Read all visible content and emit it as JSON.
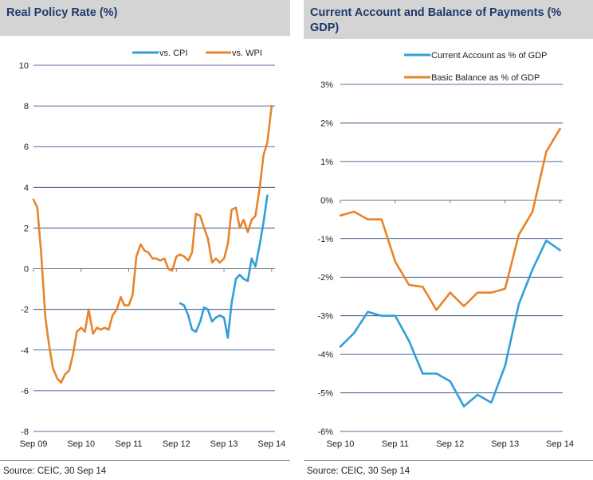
{
  "chart_data": [
    {
      "type": "line",
      "title": "Real Policy Rate (%)",
      "xlabel": "",
      "ylabel": "",
      "ylim": [
        -8,
        10
      ],
      "yticks": [
        -8,
        -6,
        -4,
        -2,
        0,
        2,
        4,
        6,
        8,
        10
      ],
      "ytick_labels": [
        "-8",
        "-6",
        "-4",
        "-2",
        "0",
        "2",
        "4",
        "6",
        "8",
        "10"
      ],
      "xlim": [
        2009.67,
        2014.74
      ],
      "xtick_positions": [
        2009.67,
        2010.67,
        2011.67,
        2012.67,
        2013.67,
        2014.67
      ],
      "x_ticks": [
        "Sep 09",
        "Sep 10",
        "Sep 11",
        "Sep 12",
        "Sep 13",
        "Sep 14"
      ],
      "legend_position": "top-right",
      "grid": true,
      "source": "Source: CEIC, 30 Sep 14",
      "series": [
        {
          "name": "vs. CPI",
          "color": "#2f9fd8",
          "x": [
            2012.75,
            2012.83,
            2012.92,
            2013.0,
            2013.08,
            2013.17,
            2013.25,
            2013.33,
            2013.42,
            2013.5,
            2013.58,
            2013.67,
            2013.75,
            2013.83,
            2013.92,
            2014.0,
            2014.08,
            2014.17,
            2014.25,
            2014.33,
            2014.42,
            2014.5,
            2014.58
          ],
          "y": [
            -1.7,
            -1.8,
            -2.3,
            -3.0,
            -3.1,
            -2.6,
            -1.9,
            -2.0,
            -2.6,
            -2.4,
            -2.3,
            -2.4,
            -3.4,
            -1.7,
            -0.5,
            -0.3,
            -0.5,
            -0.6,
            0.5,
            0.1,
            1.2,
            2.3,
            3.6
          ]
        },
        {
          "name": "vs. WPI",
          "color": "#e8842a",
          "x": [
            2009.67,
            2009.75,
            2009.83,
            2009.92,
            2010.0,
            2010.08,
            2010.17,
            2010.25,
            2010.33,
            2010.42,
            2010.5,
            2010.58,
            2010.67,
            2010.75,
            2010.83,
            2010.92,
            2011.0,
            2011.08,
            2011.17,
            2011.25,
            2011.33,
            2011.42,
            2011.5,
            2011.58,
            2011.67,
            2011.75,
            2011.83,
            2011.92,
            2012.0,
            2012.08,
            2012.17,
            2012.25,
            2012.33,
            2012.42,
            2012.5,
            2012.58,
            2012.67,
            2012.75,
            2012.83,
            2012.92,
            2013.0,
            2013.08,
            2013.17,
            2013.25,
            2013.33,
            2013.42,
            2013.5,
            2013.58,
            2013.67,
            2013.75,
            2013.83,
            2013.92,
            2014.0,
            2014.08,
            2014.17,
            2014.25,
            2014.33,
            2014.42,
            2014.5,
            2014.58,
            2014.67
          ],
          "y": [
            3.4,
            3.0,
            0.8,
            -2.4,
            -3.8,
            -4.9,
            -5.4,
            -5.6,
            -5.2,
            -5.0,
            -4.2,
            -3.1,
            -2.9,
            -3.1,
            -2.0,
            -3.2,
            -2.9,
            -3.0,
            -2.9,
            -3.0,
            -2.3,
            -2.0,
            -1.4,
            -1.8,
            -1.8,
            -1.3,
            0.6,
            1.2,
            0.9,
            0.8,
            0.5,
            0.5,
            0.4,
            0.5,
            0.0,
            -0.1,
            0.6,
            0.7,
            0.6,
            0.4,
            0.8,
            2.7,
            2.6,
            2.0,
            1.5,
            0.3,
            0.5,
            0.3,
            0.5,
            1.2,
            2.9,
            3.0,
            2.0,
            2.4,
            1.8,
            2.4,
            2.6,
            4.0,
            5.6,
            6.2,
            8.0
          ]
        }
      ]
    },
    {
      "type": "line",
      "title": "Current Account and Balance of Payments (% GDP)",
      "xlabel": "",
      "ylabel": "",
      "ylim": [
        -6,
        3
      ],
      "yticks": [
        -6,
        -5,
        -4,
        -3,
        -2,
        -1,
        0,
        1,
        2,
        3
      ],
      "ytick_labels": [
        "-6%",
        "-5%",
        "-4%",
        "-3%",
        "-2%",
        "-1%",
        "0%",
        "1%",
        "2%",
        "3%"
      ],
      "xlim": [
        2010.67,
        2014.72
      ],
      "xtick_positions": [
        2010.67,
        2011.67,
        2012.67,
        2013.67,
        2014.67
      ],
      "x_ticks": [
        "Sep 10",
        "Sep 11",
        "Sep 12",
        "Sep 13",
        "Sep 14"
      ],
      "legend_position": "top-right",
      "grid": true,
      "source": "Source: CEIC, 30 Sep 14",
      "series": [
        {
          "name": "Current Account as % of GDP",
          "color": "#2f9fd8",
          "x": [
            2010.67,
            2010.92,
            2011.17,
            2011.42,
            2011.67,
            2011.92,
            2012.17,
            2012.42,
            2012.67,
            2012.92,
            2013.17,
            2013.42,
            2013.67,
            2013.92,
            2014.17,
            2014.42,
            2014.67
          ],
          "y": [
            -3.8,
            -3.45,
            -2.9,
            -3.0,
            -3.0,
            -3.65,
            -4.5,
            -4.5,
            -4.7,
            -5.35,
            -5.05,
            -5.25,
            -4.3,
            -2.7,
            -1.8,
            -1.05,
            -1.3
          ]
        },
        {
          "name": "Basic Balance as % of GDP",
          "color": "#e8842a",
          "x": [
            2010.67,
            2010.92,
            2011.17,
            2011.42,
            2011.67,
            2011.92,
            2012.17,
            2012.42,
            2012.67,
            2012.92,
            2013.17,
            2013.42,
            2013.67,
            2013.92,
            2014.17,
            2014.42,
            2014.67
          ],
          "y": [
            -0.4,
            -0.3,
            -0.5,
            -0.5,
            -1.6,
            -2.2,
            -2.25,
            -2.85,
            -2.4,
            -2.75,
            -2.4,
            -2.4,
            -2.3,
            -0.9,
            -0.3,
            1.25,
            1.85
          ]
        }
      ]
    }
  ]
}
